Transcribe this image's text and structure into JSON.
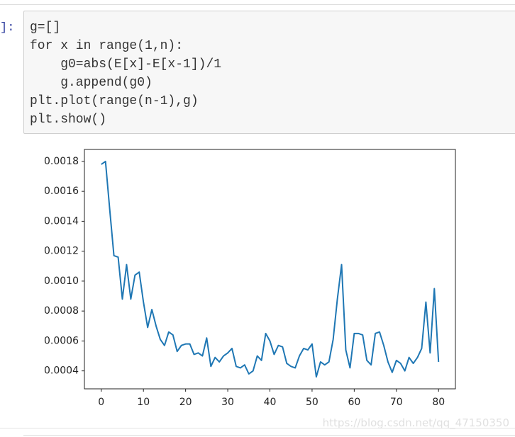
{
  "prompt": "]:",
  "code_lines": [
    "g=[]",
    "for x in range(1,n):",
    "    g0=abs(E[x]-E[x-1])/1",
    "    g.append(g0)",
    "plt.plot(range(n-1),g)",
    "plt.show()"
  ],
  "watermark": "https://blog.csdn.net/qq_47150350",
  "chart_data": {
    "type": "line",
    "color": "#1f77b4",
    "x": [
      0,
      1,
      2,
      3,
      4,
      5,
      6,
      7,
      8,
      9,
      10,
      11,
      12,
      13,
      14,
      15,
      16,
      17,
      18,
      19,
      20,
      21,
      22,
      23,
      24,
      25,
      26,
      27,
      28,
      29,
      30,
      31,
      32,
      33,
      34,
      35,
      36,
      37,
      38,
      39,
      40,
      41,
      42,
      43,
      44,
      45,
      46,
      47,
      48,
      49,
      50,
      51,
      52,
      53,
      54,
      55,
      56,
      57,
      58,
      59,
      60,
      61,
      62,
      63,
      64,
      65,
      66,
      67,
      68,
      69,
      70,
      71,
      72,
      73,
      74,
      75,
      76,
      77,
      78,
      79,
      80
    ],
    "values": [
      0.00178,
      0.0018,
      0.00148,
      0.00117,
      0.00116,
      0.00088,
      0.00111,
      0.00088,
      0.00104,
      0.00106,
      0.00086,
      0.00069,
      0.00081,
      0.0007,
      0.00061,
      0.00057,
      0.00066,
      0.00064,
      0.00053,
      0.00057,
      0.00058,
      0.00058,
      0.00051,
      0.00052,
      0.0005,
      0.00062,
      0.00043,
      0.00049,
      0.00046,
      0.0005,
      0.00052,
      0.00055,
      0.00043,
      0.00042,
      0.00044,
      0.00038,
      0.0004,
      0.0005,
      0.00047,
      0.00065,
      0.0006,
      0.00051,
      0.00057,
      0.00056,
      0.00045,
      0.00043,
      0.00042,
      0.0005,
      0.00055,
      0.00054,
      0.00058,
      0.00036,
      0.00046,
      0.00044,
      0.00046,
      0.00061,
      0.00088,
      0.00111,
      0.00054,
      0.00042,
      0.00065,
      0.00065,
      0.00064,
      0.00047,
      0.00044,
      0.00065,
      0.00066,
      0.00057,
      0.00046,
      0.00039,
      0.00047,
      0.00045,
      0.0004,
      0.00049,
      0.00045,
      0.00049,
      0.00055,
      0.00086,
      0.00052,
      0.00095,
      0.00046
    ],
    "xlim": [
      -4,
      84
    ],
    "xticks": [
      0,
      10,
      20,
      30,
      40,
      50,
      60,
      70,
      80
    ],
    "ylim": [
      0.00028,
      0.00188
    ],
    "yticks": [
      0.0004,
      0.0006,
      0.0008,
      {
        "value": 0.001,
        "label": "0.0010"
      },
      0.0012,
      0.0014,
      0.0016,
      0.0018
    ]
  }
}
